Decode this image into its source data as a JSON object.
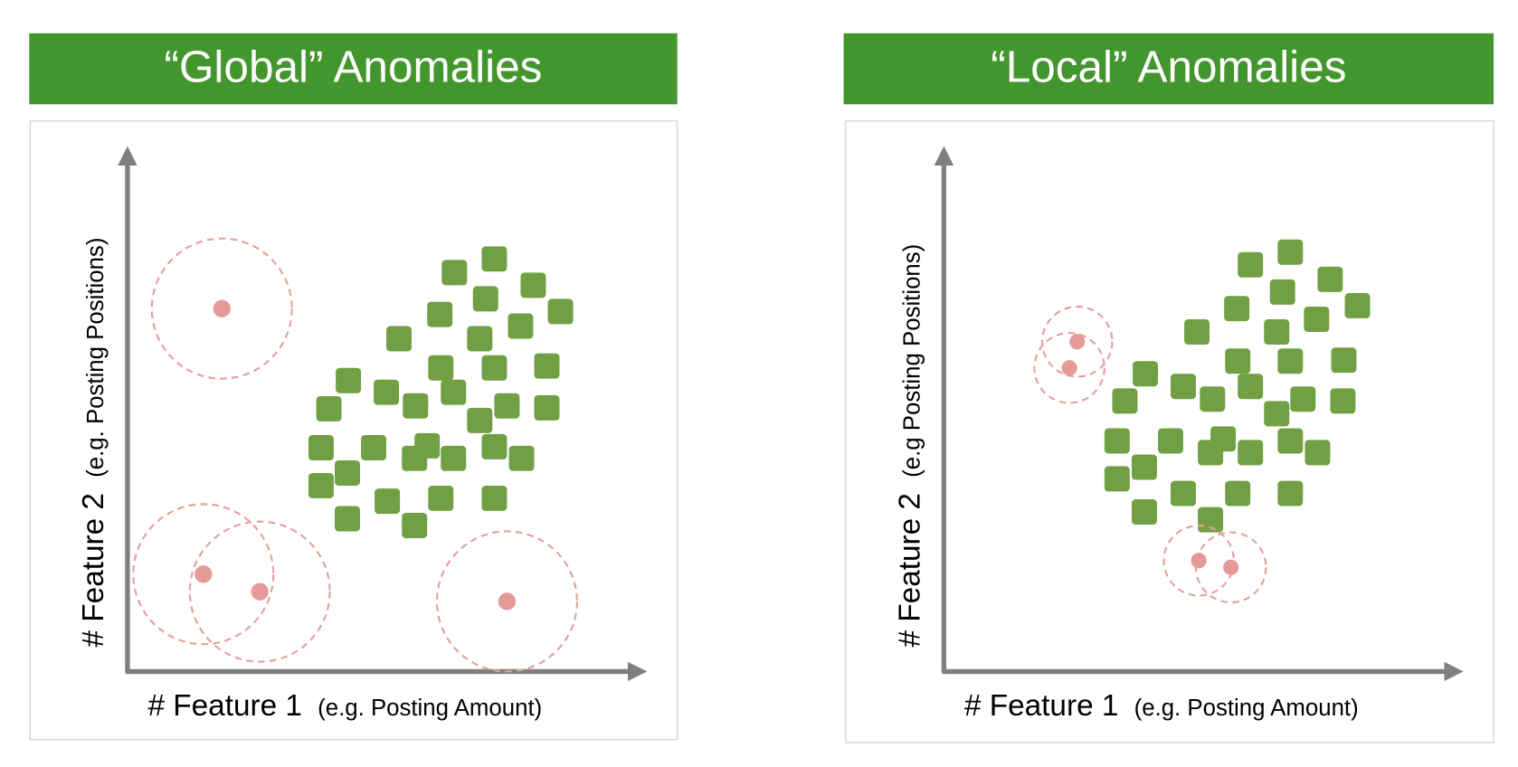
{
  "panels": [
    {
      "title": "“Global” Anomalies",
      "x_label": "# Feature 1",
      "x_sublabel": "(e.g. Posting Amount)",
      "y_label": "# Feature 2",
      "y_sublabel": "(e.g. Posting Positions)"
    },
    {
      "title": "“Local” Anomalies",
      "x_label": "# Feature 1",
      "x_sublabel": "(e.g. Posting Amount)",
      "y_label": "# Feature 2",
      "y_sublabel": "(e.g Posting Positions)"
    }
  ]
}
